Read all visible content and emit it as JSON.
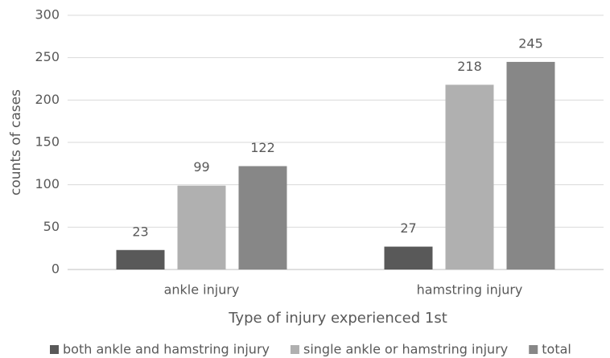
{
  "chart_data": {
    "type": "bar",
    "x_label": "Type of injury experienced 1st",
    "y_label": "counts of cases",
    "categories": [
      "ankle injury",
      "hamstring injury"
    ],
    "series": [
      {
        "name": "both ankle and hamstring injury",
        "color": "#595959",
        "values": [
          23,
          27
        ]
      },
      {
        "name": "single ankle or hamstring injury",
        "color": "#b0b0b0",
        "values": [
          99,
          218
        ]
      },
      {
        "name": "total",
        "color": "#878787",
        "values": [
          122,
          245
        ]
      }
    ],
    "ylim": [
      0,
      300
    ],
    "yticks": [
      0,
      50,
      100,
      150,
      200,
      250,
      300
    ],
    "grid": true,
    "legend": "bottom"
  }
}
